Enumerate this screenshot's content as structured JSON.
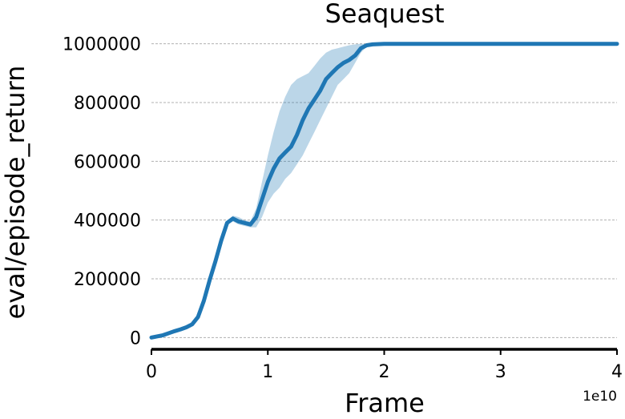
{
  "chart_data": {
    "type": "line",
    "title": "Seaquest",
    "xlabel": "Frame",
    "ylabel": "eval/episode_return",
    "x_offset_label": "1e10",
    "xlim": [
      0,
      4
    ],
    "ylim": [
      -40000,
      1040000
    ],
    "x_ticks": [
      0,
      1,
      2,
      3,
      4
    ],
    "x_tick_labels": [
      "0",
      "1",
      "2",
      "3",
      "4"
    ],
    "y_ticks": [
      0,
      200000,
      400000,
      600000,
      800000,
      1000000
    ],
    "y_tick_labels": [
      "0",
      "200000",
      "400000",
      "600000",
      "800000",
      "1000000"
    ],
    "grid": "y",
    "colors": {
      "line": "#1f77b4",
      "band": "#1f77b4"
    },
    "series": [
      {
        "x": [
          0,
          0.1,
          0.15,
          0.2,
          0.25,
          0.3,
          0.35,
          0.4,
          0.45,
          0.5,
          0.55,
          0.6,
          0.65,
          0.7,
          0.75,
          0.8,
          0.85,
          0.9,
          0.95,
          1.0,
          1.05,
          1.1,
          1.15,
          1.2,
          1.25,
          1.3,
          1.35,
          1.4,
          1.45,
          1.5,
          1.55,
          1.6,
          1.65,
          1.7,
          1.75,
          1.8,
          1.85,
          1.9,
          2.0,
          2.5,
          3.0,
          3.5,
          4.0
        ],
        "y": [
          0,
          8000,
          15000,
          22000,
          28000,
          35000,
          45000,
          70000,
          125000,
          195000,
          260000,
          330000,
          390000,
          405000,
          395000,
          390000,
          385000,
          410000,
          470000,
          530000,
          575000,
          610000,
          630000,
          650000,
          690000,
          740000,
          780000,
          810000,
          840000,
          880000,
          900000,
          920000,
          935000,
          945000,
          960000,
          985000,
          995000,
          998000,
          1000000,
          1000000,
          1000000,
          1000000,
          1000000
        ],
        "y_lower": [
          0,
          8000,
          15000,
          22000,
          28000,
          35000,
          45000,
          70000,
          125000,
          195000,
          260000,
          330000,
          385000,
          395000,
          385000,
          380000,
          375000,
          375000,
          410000,
          460000,
          490000,
          510000,
          540000,
          560000,
          590000,
          620000,
          660000,
          700000,
          740000,
          780000,
          820000,
          860000,
          880000,
          900000,
          935000,
          970000,
          990000,
          995000,
          1000000,
          1000000,
          1000000,
          1000000,
          1000000
        ],
        "y_upper": [
          0,
          8000,
          15000,
          22000,
          28000,
          35000,
          45000,
          70000,
          125000,
          195000,
          260000,
          330000,
          395000,
          415000,
          410000,
          400000,
          395000,
          440000,
          530000,
          620000,
          700000,
          770000,
          820000,
          860000,
          880000,
          890000,
          900000,
          925000,
          950000,
          970000,
          980000,
          985000,
          990000,
          995000,
          998000,
          1000000,
          1000000,
          1000000,
          1000000,
          1000000,
          1000000,
          1000000,
          1000000
        ]
      }
    ]
  }
}
